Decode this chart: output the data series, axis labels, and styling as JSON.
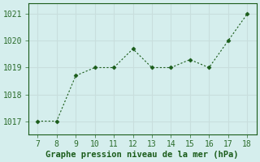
{
  "x": [
    7,
    8,
    9,
    10,
    11,
    12,
    13,
    14,
    15,
    16,
    17,
    18
  ],
  "y": [
    1017.0,
    1017.0,
    1018.7,
    1019.0,
    1019.0,
    1019.7,
    1019.0,
    1019.0,
    1019.3,
    1019.0,
    1020.0,
    1021.0
  ],
  "line_color": "#1a5c1a",
  "marker": "D",
  "marker_size": 2.5,
  "xlabel": "Graphe pression niveau de la mer (hPa)",
  "ylabel": "",
  "xlim": [
    6.5,
    18.5
  ],
  "ylim": [
    1016.5,
    1021.4
  ],
  "yticks": [
    1017,
    1018,
    1019,
    1020,
    1021
  ],
  "xticks": [
    7,
    8,
    9,
    10,
    11,
    12,
    13,
    14,
    15,
    16,
    17,
    18
  ],
  "bg_color": "#d5eeed",
  "grid_color": "#c8dedd",
  "tick_label_color": "#2a6b2a",
  "xlabel_color": "#1a5c1a",
  "xlabel_fontsize": 7.5,
  "tick_fontsize": 7
}
